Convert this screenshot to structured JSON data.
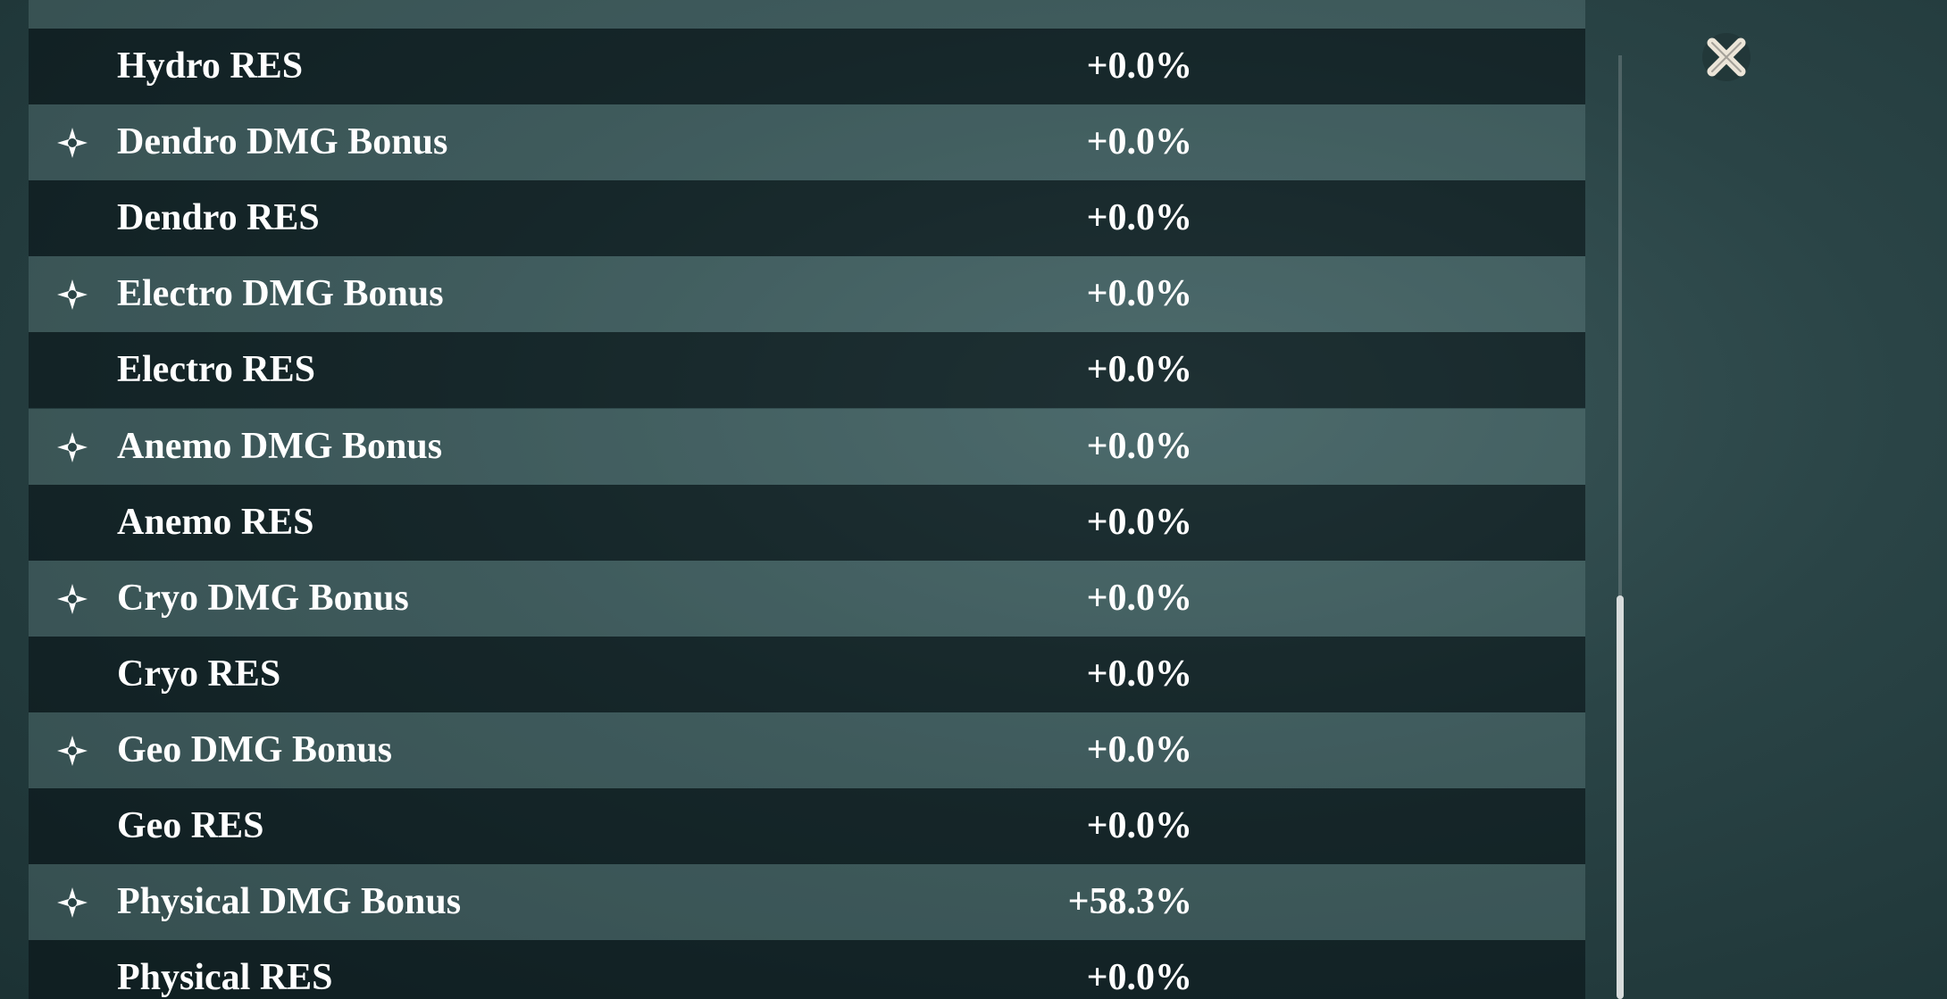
{
  "stats": {
    "rows": [
      {
        "label": "Hydro RES",
        "value": "+0.0%"
      },
      {
        "label": "Dendro DMG Bonus",
        "value": "+0.0%"
      },
      {
        "label": "Dendro RES",
        "value": "+0.0%"
      },
      {
        "label": "Electro DMG Bonus",
        "value": "+0.0%"
      },
      {
        "label": "Electro RES",
        "value": "+0.0%"
      },
      {
        "label": "Anemo DMG Bonus",
        "value": "+0.0%"
      },
      {
        "label": "Anemo RES",
        "value": "+0.0%"
      },
      {
        "label": "Cryo DMG Bonus",
        "value": "+0.0%"
      },
      {
        "label": "Cryo RES",
        "value": "+0.0%"
      },
      {
        "label": "Geo DMG Bonus",
        "value": "+0.0%"
      },
      {
        "label": "Geo RES",
        "value": "+0.0%"
      },
      {
        "label": "Physical DMG Bonus",
        "value": "+58.3%"
      },
      {
        "label": "Physical RES",
        "value": "+0.0%"
      }
    ]
  }
}
